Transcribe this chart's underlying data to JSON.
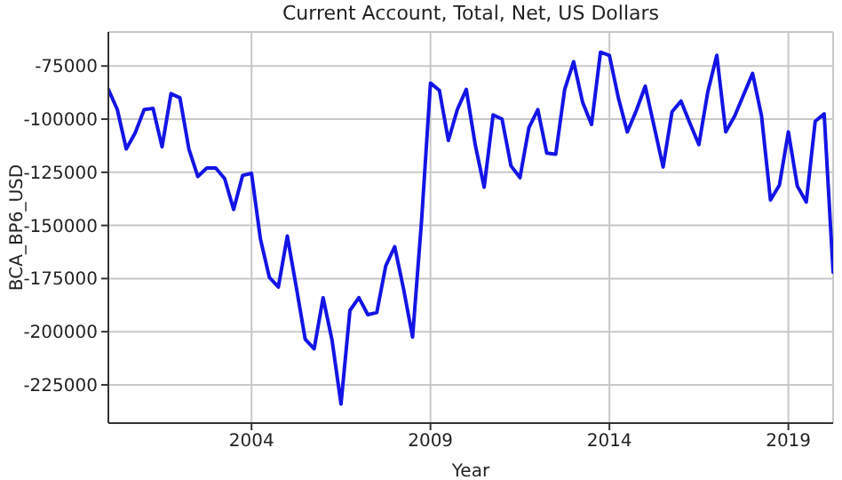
{
  "chart_data": {
    "type": "line",
    "title": "Current Account, Total, Net, US Dollars",
    "xlabel": "Year",
    "ylabel": "BCA_BP6_USD",
    "x": [
      2000,
      2000.25,
      2000.5,
      2000.75,
      2001,
      2001.25,
      2001.5,
      2001.75,
      2002,
      2002.25,
      2002.5,
      2002.75,
      2003,
      2003.25,
      2003.5,
      2003.75,
      2004,
      2004.25,
      2004.5,
      2004.75,
      2005,
      2005.25,
      2005.5,
      2005.75,
      2006,
      2006.25,
      2006.5,
      2006.75,
      2007,
      2007.25,
      2007.5,
      2007.75,
      2008,
      2008.25,
      2008.5,
      2008.75,
      2009,
      2009.25,
      2009.5,
      2009.75,
      2010,
      2010.25,
      2010.5,
      2010.75,
      2011,
      2011.25,
      2011.5,
      2011.75,
      2012,
      2012.25,
      2012.5,
      2012.75,
      2013,
      2013.25,
      2013.5,
      2013.75,
      2014,
      2014.25,
      2014.5,
      2014.75,
      2015,
      2015.25,
      2015.5,
      2015.75,
      2016,
      2016.25,
      2016.5,
      2016.75,
      2017,
      2017.25,
      2017.5,
      2017.75,
      2018,
      2018.25,
      2018.5,
      2018.75,
      2019,
      2019.25,
      2019.5,
      2019.75,
      2020,
      2020.25
    ],
    "series": [
      {
        "color": "#1414e6",
        "values": [
          -86000,
          -95500,
          -114000,
          -106500,
          -95500,
          -95000,
          -113000,
          -88000,
          -90000,
          -114000,
          -127000,
          -123000,
          -123000,
          -128000,
          -142500,
          -126500,
          -125500,
          -156500,
          -174500,
          -179000,
          -155000,
          -179000,
          -203500,
          -208000,
          -184000,
          -204000,
          -234000,
          -190000,
          -184000,
          -192000,
          -191000,
          -169000,
          -160000,
          -180000,
          -202500,
          -148000,
          -83000,
          -86500,
          -110000,
          -95500,
          -86000,
          -112000,
          -132000,
          -98000,
          -100000,
          -122000,
          -127500,
          -104000,
          -95500,
          -116000,
          -116500,
          -86000,
          -73000,
          -92000,
          -102500,
          -68500,
          -70000,
          -90000,
          -106000,
          -96000,
          -84500,
          -103500,
          -122500,
          -96500,
          -91500,
          -102000,
          -112000,
          -87000,
          -70000,
          -106000,
          -98500,
          -88500,
          -78500,
          -98500,
          -138000,
          -131000,
          -106000,
          -131500,
          -139000,
          -101000,
          -97500,
          -172000
        ]
      }
    ],
    "xlim": [
      2000,
      2020.25
    ],
    "xticks": [
      2004,
      2009,
      2014,
      2019
    ],
    "ylim": [
      -243000,
      -59000
    ],
    "yticks": [
      -225000,
      -200000,
      -175000,
      -150000,
      -125000,
      -100000,
      -75000
    ],
    "grid": true,
    "marker": "none",
    "line_style": "solid"
  }
}
